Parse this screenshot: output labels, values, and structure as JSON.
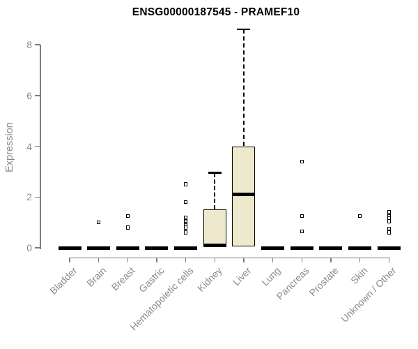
{
  "chart_data": {
    "type": "boxplot",
    "title": "ENSG00000187545 - PRAMEF10",
    "ylabel": "Expression",
    "xlabel": "",
    "ylim": [
      0,
      8.7
    ],
    "yticks": [
      0,
      2,
      4,
      6,
      8
    ],
    "grid": false,
    "legend": false,
    "categories": [
      "Bladder",
      "Brain",
      "Breast",
      "Gastric",
      "Hematopoietic cells",
      "Kidney",
      "Liver",
      "Lung",
      "Pancreas",
      "Prostate",
      "Skin",
      "Unknown / Other"
    ],
    "series": [
      {
        "category": "Bladder",
        "q1": 0,
        "median": 0,
        "q3": 0,
        "whisker_low": 0,
        "whisker_high": 0,
        "outliers": []
      },
      {
        "category": "Brain",
        "q1": 0,
        "median": 0,
        "q3": 0,
        "whisker_low": 0,
        "whisker_high": 0,
        "outliers": [
          1.0
        ]
      },
      {
        "category": "Breast",
        "q1": 0,
        "median": 0,
        "q3": 0,
        "whisker_low": 0,
        "whisker_high": 0,
        "outliers": [
          1.25,
          0.8
        ]
      },
      {
        "category": "Gastric",
        "q1": 0,
        "median": 0,
        "q3": 0,
        "whisker_low": 0,
        "whisker_high": 0,
        "outliers": []
      },
      {
        "category": "Hematopoietic cells",
        "q1": 0,
        "median": 0,
        "q3": 0,
        "whisker_low": 0,
        "whisker_high": 0,
        "outliers": [
          2.5,
          1.8,
          1.2,
          1.1,
          1.05,
          1.0,
          0.95,
          0.9,
          0.8,
          0.6
        ]
      },
      {
        "category": "Kidney",
        "q1": 0.05,
        "median": 0.1,
        "q3": 1.5,
        "whisker_low": 0,
        "whisker_high": 2.95,
        "outliers": []
      },
      {
        "category": "Liver",
        "q1": 0.05,
        "median": 2.1,
        "q3": 4.0,
        "whisker_low": 0,
        "whisker_high": 8.6,
        "outliers": []
      },
      {
        "category": "Lung",
        "q1": 0,
        "median": 0,
        "q3": 0,
        "whisker_low": 0,
        "whisker_high": 0,
        "outliers": []
      },
      {
        "category": "Pancreas",
        "q1": 0,
        "median": 0,
        "q3": 0,
        "whisker_low": 0,
        "whisker_high": 0,
        "outliers": [
          3.4,
          1.25,
          0.65
        ]
      },
      {
        "category": "Prostate",
        "q1": 0,
        "median": 0,
        "q3": 0,
        "whisker_low": 0,
        "whisker_high": 0,
        "outliers": []
      },
      {
        "category": "Skin",
        "q1": 0,
        "median": 0,
        "q3": 0,
        "whisker_low": 0,
        "whisker_high": 0,
        "outliers": [
          1.25
        ]
      },
      {
        "category": "Unknown / Other",
        "q1": 0,
        "median": 0,
        "q3": 0,
        "whisker_low": 0,
        "whisker_high": 0,
        "outliers": [
          1.4,
          1.3,
          1.25,
          1.15,
          1.05,
          0.75,
          0.6
        ]
      }
    ]
  },
  "style": {
    "background": "#ffffff",
    "title_color": "#000000",
    "axis_line_color": "#7d7d7d",
    "label_color": "#8a8a8a",
    "box_fill": "#eee8cd",
    "box_border": "#000000",
    "median_color": "#000000",
    "outlier_border": "#000000"
  }
}
